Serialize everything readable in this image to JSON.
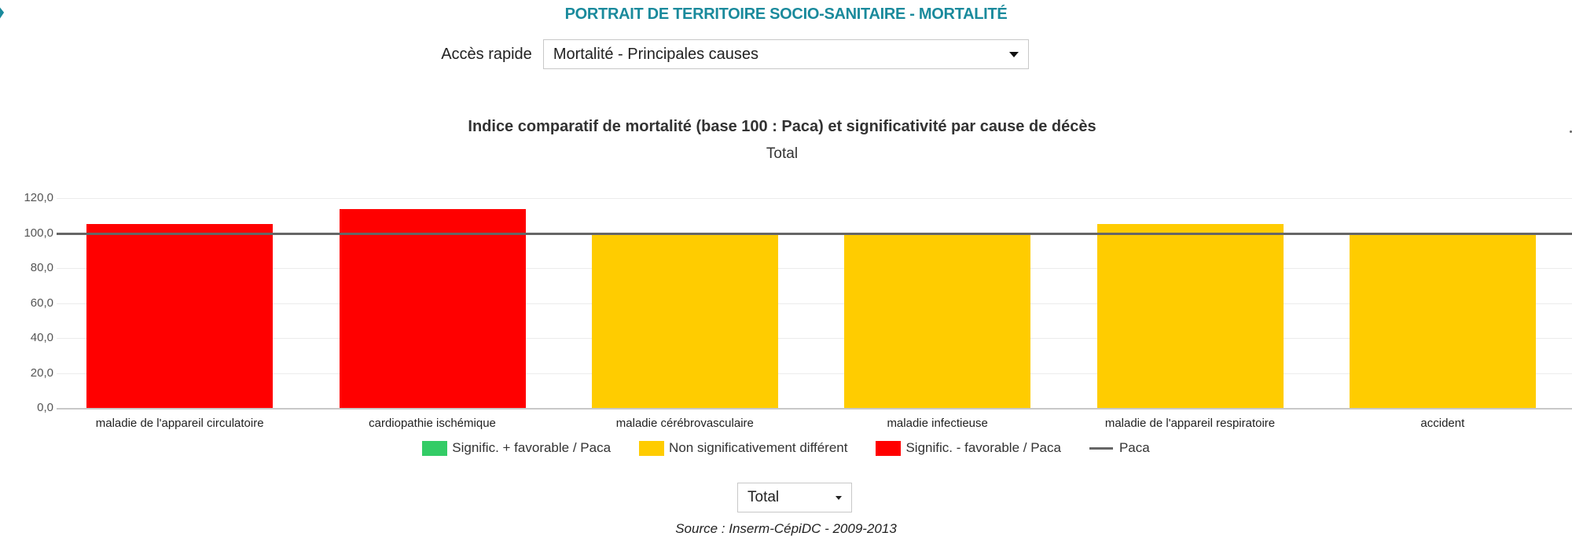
{
  "header": {
    "title": "PORTRAIT DE TERRITOIRE SOCIO-SANITAIRE - MORTALITÉ",
    "quick_access_label": "Accès rapide",
    "quick_access_value": "Mortalité - Principales causes"
  },
  "colors": {
    "title_teal": "#1a8a9c",
    "favorable": "#33cc66",
    "non_significant": "#ffcc00",
    "unfavorable": "#ff0000",
    "reference_line": "#666666"
  },
  "chart_data": {
    "type": "bar",
    "title": "Indice comparatif de mortalité (base 100 : Paca) et significativité par cause de décès",
    "subtitle": "Total",
    "xlabel": "",
    "ylabel": "",
    "ylim": [
      0,
      120
    ],
    "yticks": [
      "0,0",
      "20,0",
      "40,0",
      "60,0",
      "80,0",
      "100,0",
      "120,0"
    ],
    "grid": true,
    "legend_position": "bottom",
    "categories": [
      "maladie de l'appareil circulatoire",
      "cardiopathie ischémique",
      "maladie cérébrovasculaire",
      "maladie infectieuse",
      "maladie de l'appareil respiratoire",
      "accident"
    ],
    "values": [
      105.0,
      113.5,
      99.5,
      99.5,
      105.0,
      98.8
    ],
    "significance": [
      "Signific. - favorable / Paca",
      "Signific. - favorable / Paca",
      "Non significativement différent",
      "Non significativement différent",
      "Non significativement différent",
      "Non significativement différent"
    ],
    "bar_colors": [
      "#ff0000",
      "#ff0000",
      "#ffcc00",
      "#ffcc00",
      "#ffcc00",
      "#ffcc00"
    ],
    "reference_line": {
      "name": "Paca",
      "value": 100
    },
    "legend": [
      {
        "label": "Signific. + favorable / Paca",
        "type": "box",
        "color": "#33cc66"
      },
      {
        "label": "Non significativement différent",
        "type": "box",
        "color": "#ffcc00"
      },
      {
        "label": "Signific. - favorable / Paca",
        "type": "box",
        "color": "#ff0000"
      },
      {
        "label": "Paca",
        "type": "line",
        "color": "#666666"
      }
    ]
  },
  "filter": {
    "value": "Total"
  },
  "footer": {
    "source": "Source : Inserm-CépiDC - 2009-2013"
  }
}
